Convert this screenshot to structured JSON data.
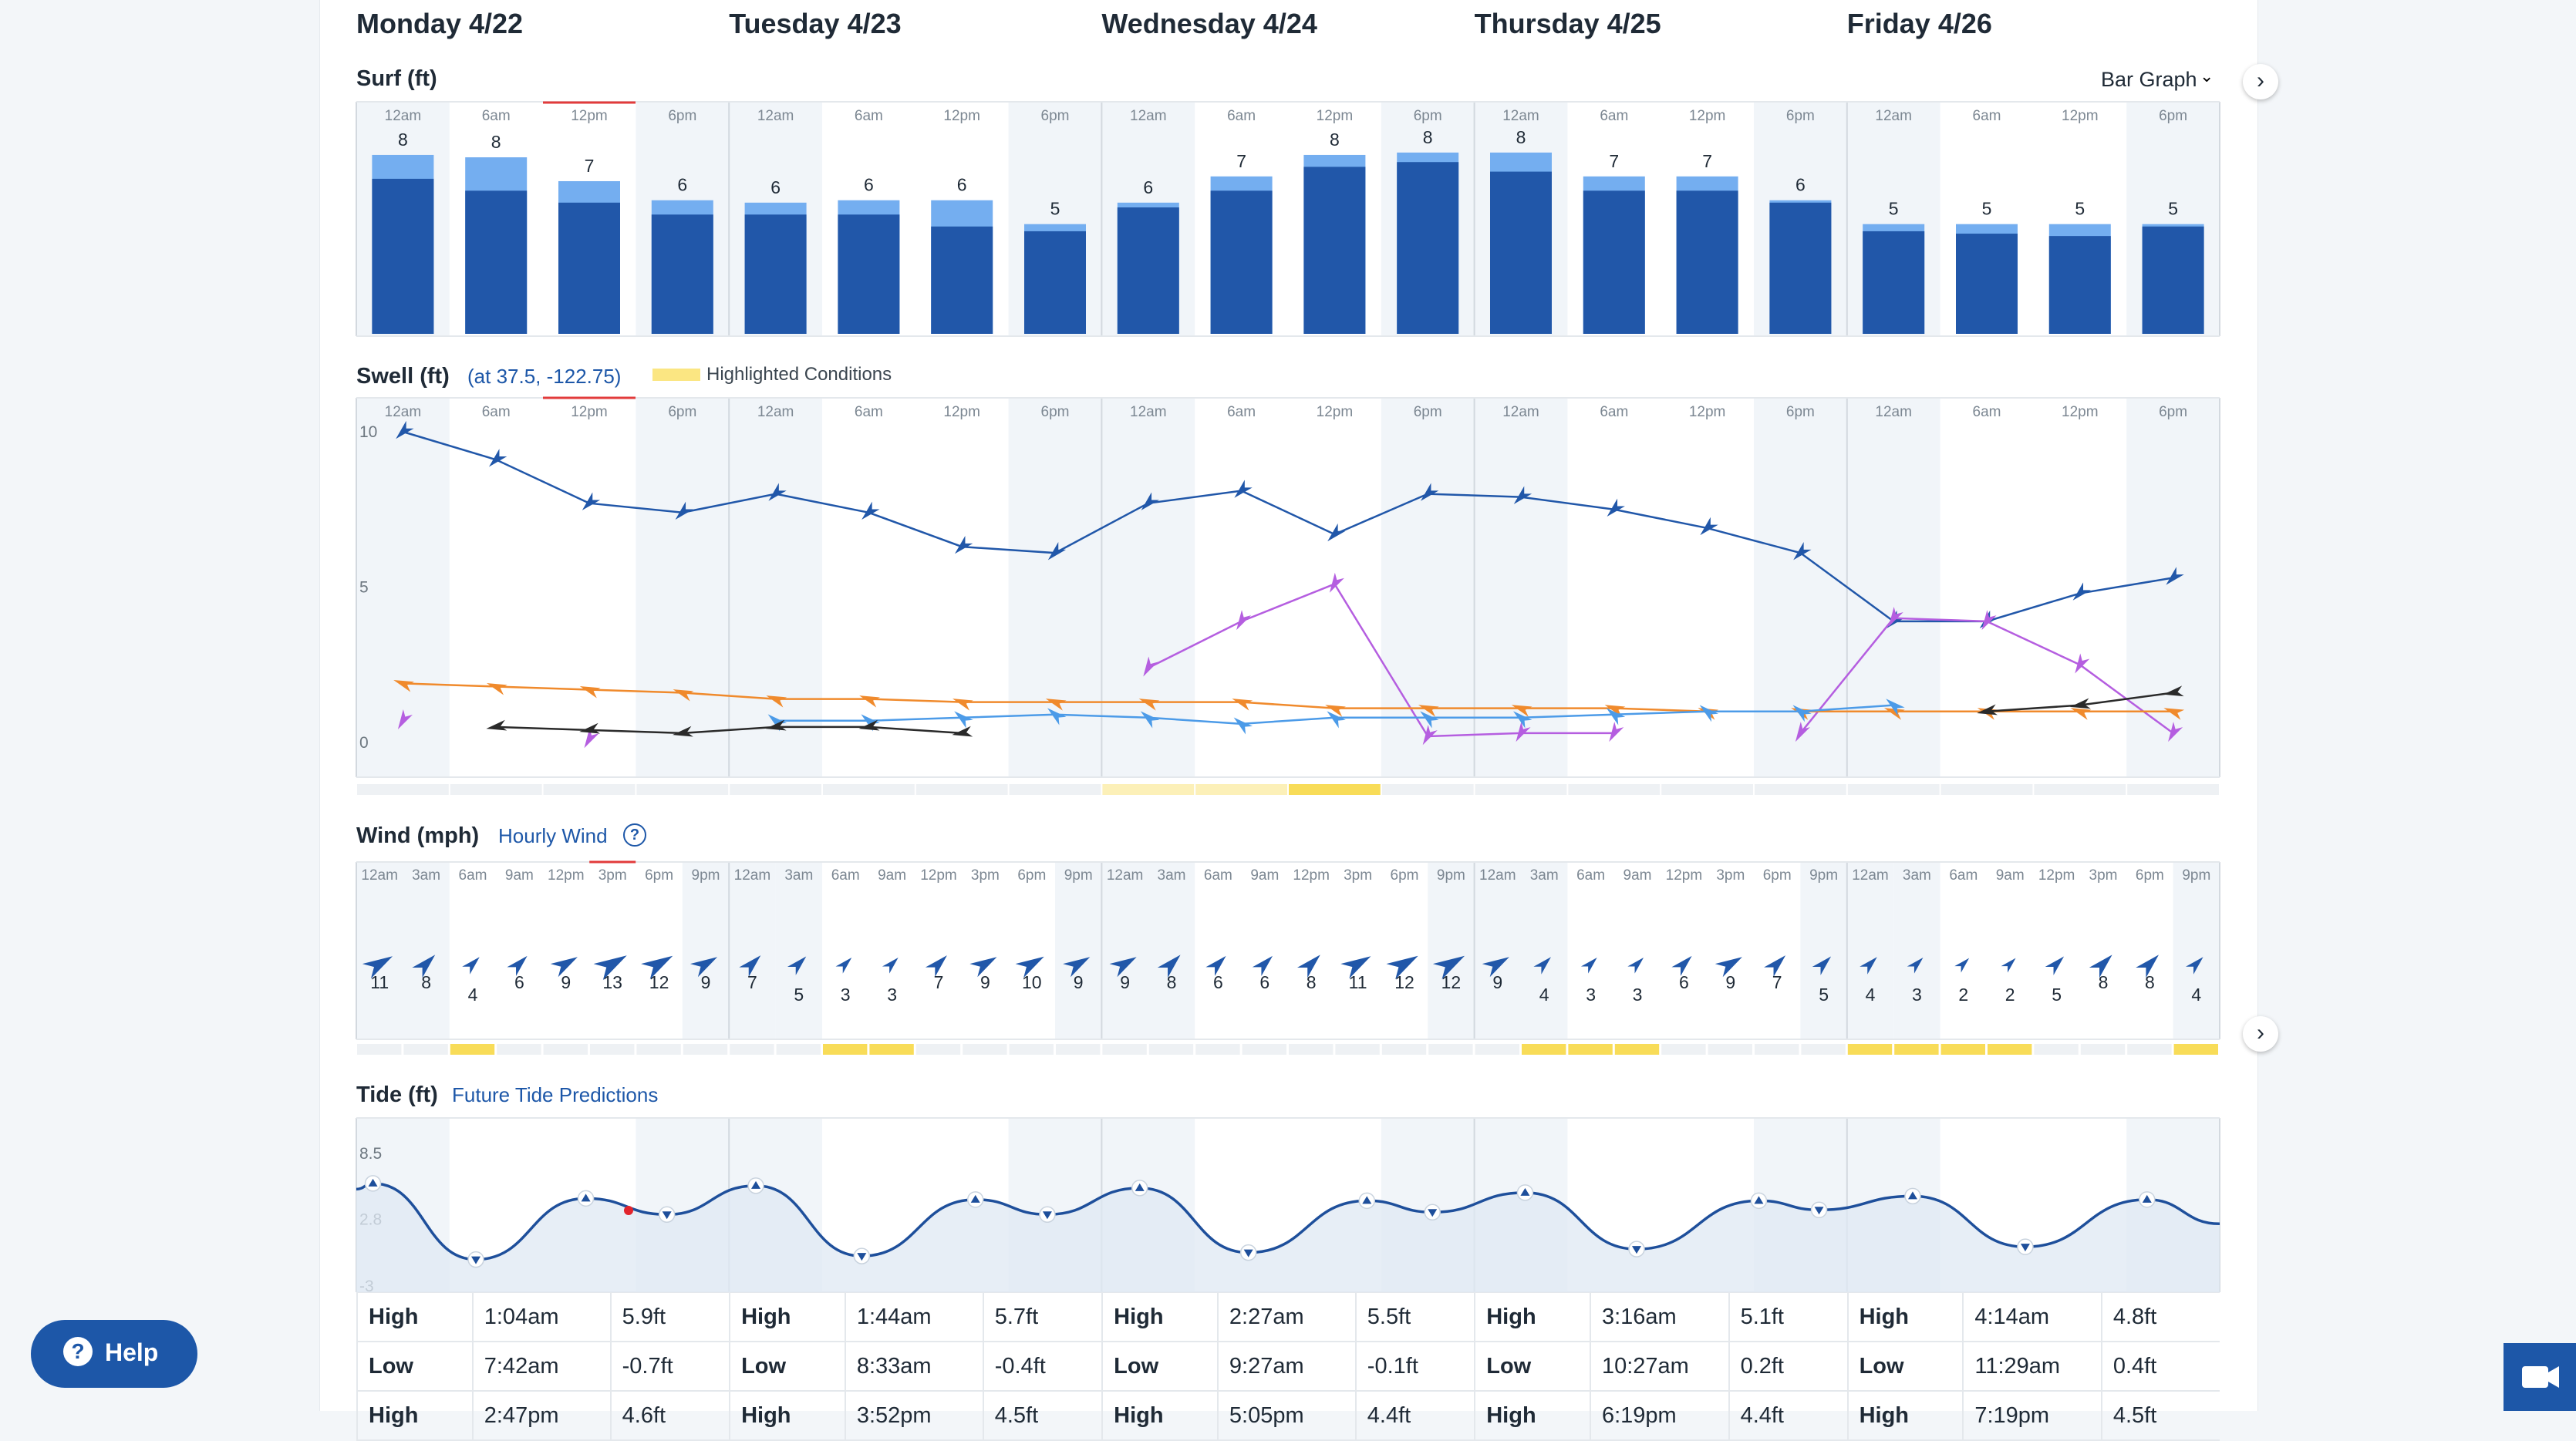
{
  "days": [
    "Monday 4/22",
    "Tuesday 4/23",
    "Wednesday 4/24",
    "Thursday 4/25",
    "Friday 4/26"
  ],
  "six_hour_ticks": [
    "12am",
    "6am",
    "12pm",
    "6pm"
  ],
  "three_hour_ticks": [
    "12am",
    "3am",
    "6am",
    "9am",
    "12pm",
    "3pm",
    "6pm",
    "9pm"
  ],
  "surf": {
    "title": "Surf (ft)",
    "view_label": "Bar Graph",
    "chevron_icon": "chevron-down-icon"
  },
  "swell": {
    "title": "Swell (ft)",
    "location": "(at 37.5, -122.75)",
    "legend_label": "Highlighted Conditions"
  },
  "wind": {
    "title": "Wind (mph)",
    "link": "Hourly Wind",
    "help": "?"
  },
  "tide": {
    "title": "Tide (ft)",
    "link": "Future Tide Predictions",
    "rows": [
      [
        [
          "High",
          "1:04am",
          "5.9ft"
        ],
        [
          "High",
          "1:44am",
          "5.7ft"
        ],
        [
          "High",
          "2:27am",
          "5.5ft"
        ],
        [
          "High",
          "3:16am",
          "5.1ft"
        ],
        [
          "High",
          "4:14am",
          "4.8ft"
        ]
      ],
      [
        [
          "Low",
          "7:42am",
          "-0.7ft"
        ],
        [
          "Low",
          "8:33am",
          "-0.4ft"
        ],
        [
          "Low",
          "9:27am",
          "-0.1ft"
        ],
        [
          "Low",
          "10:27am",
          "0.2ft"
        ],
        [
          "Low",
          "11:29am",
          "0.4ft"
        ]
      ],
      [
        [
          "High",
          "2:47pm",
          "4.6ft"
        ],
        [
          "High",
          "3:52pm",
          "4.5ft"
        ],
        [
          "High",
          "5:05pm",
          "4.4ft"
        ],
        [
          "High",
          "6:19pm",
          "4.4ft"
        ],
        [
          "High",
          "7:19pm",
          "4.5ft"
        ]
      ]
    ]
  },
  "help_label": "Help",
  "colors": {
    "surf_dark": "#2157a9",
    "surf_light": "#74aef0",
    "highlight": "#fbe682",
    "night_shade": "#f1f5f9",
    "swell_primary": "#2157a9",
    "swell_secondary_purple": "#b55ee0",
    "swell_orange": "#f08a2c",
    "swell_light_blue": "#4c9be8",
    "swell_black": "#2a2a2a",
    "tide_line": "#1e4f9b"
  },
  "chart_data": [
    {
      "id": "surf",
      "type": "bar",
      "title": "Surf (ft)",
      "categories": [
        "4/22 12am",
        "4/22 6am",
        "4/22 12pm",
        "4/22 6pm",
        "4/23 12am",
        "4/23 6am",
        "4/23 12pm",
        "4/23 6pm",
        "4/24 12am",
        "4/24 6am",
        "4/24 12pm",
        "4/24 6pm",
        "4/25 12am",
        "4/25 6am",
        "4/25 12pm",
        "4/25 6pm",
        "4/26 12am",
        "4/26 6am",
        "4/26 12pm",
        "4/26 6pm"
      ],
      "series": [
        {
          "name": "min",
          "values": [
            6.5,
            6.0,
            5.5,
            5.0,
            5.0,
            5.0,
            4.5,
            4.3,
            5.3,
            6.0,
            7.0,
            7.2,
            6.8,
            6.0,
            6.0,
            5.5,
            4.3,
            4.2,
            4.1,
            4.5
          ]
        },
        {
          "name": "max",
          "values": [
            7.5,
            7.4,
            6.4,
            5.6,
            5.5,
            5.6,
            5.6,
            4.6,
            5.5,
            6.6,
            7.5,
            7.6,
            7.6,
            6.6,
            6.6,
            5.6,
            4.6,
            4.6,
            4.6,
            4.6
          ]
        }
      ],
      "labels": [
        "8",
        "8",
        "7",
        "6",
        "6",
        "6",
        "6",
        "5",
        "6",
        "7",
        "8",
        "8",
        "8",
        "7",
        "7",
        "6",
        "5",
        "5",
        "5",
        "5"
      ],
      "ylim": [
        0,
        10
      ]
    },
    {
      "id": "swell",
      "type": "line",
      "title": "Swell (ft)",
      "x": [
        "4/22 12am",
        "4/22 6am",
        "4/22 12pm",
        "4/22 6pm",
        "4/23 12am",
        "4/23 6am",
        "4/23 12pm",
        "4/23 6pm",
        "4/24 12am",
        "4/24 6am",
        "4/24 12pm",
        "4/24 6pm",
        "4/25 12am",
        "4/25 6am",
        "4/25 12pm",
        "4/25 6pm",
        "4/26 12am",
        "4/26 6am",
        "4/26 12pm",
        "4/26 6pm"
      ],
      "yticks": [
        "10",
        "5",
        "0"
      ],
      "ylim": [
        0,
        10
      ],
      "series": [
        {
          "color_key": "swell_primary",
          "values": [
            10.0,
            9.1,
            7.7,
            7.4,
            8.0,
            7.4,
            6.3,
            6.1,
            7.7,
            8.1,
            6.7,
            8.0,
            7.9,
            7.5,
            6.9,
            6.1,
            3.9,
            3.9,
            4.8,
            5.3
          ]
        },
        {
          "color_key": "swell_secondary_purple",
          "values": [
            0.7,
            null,
            0.1,
            null,
            null,
            null,
            null,
            null,
            2.4,
            3.9,
            5.1,
            0.2,
            0.3,
            0.3,
            null,
            0.3,
            4.0,
            3.9,
            2.5,
            0.3
          ]
        },
        {
          "color_key": "swell_orange",
          "values": [
            1.9,
            1.8,
            1.7,
            1.6,
            1.4,
            1.4,
            1.3,
            1.3,
            1.3,
            1.3,
            1.1,
            1.1,
            1.1,
            1.1,
            1.0,
            1.0,
            1.0,
            1.0,
            1.0,
            1.0
          ]
        },
        {
          "color_key": "swell_light_blue",
          "values": [
            null,
            null,
            null,
            null,
            0.7,
            0.7,
            0.8,
            0.9,
            0.8,
            0.6,
            0.8,
            0.8,
            0.8,
            0.9,
            1.0,
            1.0,
            1.2,
            null,
            null,
            null
          ]
        },
        {
          "color_key": "swell_black",
          "values": [
            null,
            0.5,
            0.4,
            0.3,
            0.5,
            0.5,
            0.3,
            null,
            null,
            null,
            null,
            null,
            null,
            null,
            null,
            null,
            null,
            1.0,
            1.2,
            1.6
          ]
        }
      ],
      "highlight_cells": [
        8,
        9,
        10
      ]
    },
    {
      "id": "wind",
      "type": "scatter",
      "title": "Wind (mph)",
      "values": [
        11,
        8,
        4,
        6,
        9,
        13,
        12,
        9,
        7,
        5,
        3,
        3,
        7,
        9,
        10,
        9,
        9,
        8,
        6,
        6,
        8,
        11,
        12,
        12,
        9,
        4,
        3,
        3,
        6,
        9,
        7,
        5,
        4,
        3,
        2,
        2,
        5,
        8,
        8,
        4
      ],
      "highlight_cells": [
        2,
        10,
        11,
        25,
        26,
        27,
        32,
        33,
        34,
        35,
        39
      ]
    },
    {
      "id": "tide",
      "type": "line",
      "title": "Tide (ft)",
      "yticks": [
        "8.5",
        "2.8",
        "-3"
      ],
      "ylim": [
        -3,
        8.5
      ],
      "extremes": [
        {
          "day": 0,
          "hour": 1.07,
          "value": 5.9
        },
        {
          "day": 0,
          "hour": 7.7,
          "value": -0.7
        },
        {
          "day": 0,
          "hour": 14.78,
          "value": 4.6
        },
        {
          "day": 0,
          "hour": 20.0,
          "value": 3.2
        },
        {
          "day": 1,
          "hour": 1.73,
          "value": 5.7
        },
        {
          "day": 1,
          "hour": 8.55,
          "value": -0.4
        },
        {
          "day": 1,
          "hour": 15.87,
          "value": 4.5
        },
        {
          "day": 1,
          "hour": 20.5,
          "value": 3.2
        },
        {
          "day": 2,
          "hour": 2.45,
          "value": 5.5
        },
        {
          "day": 2,
          "hour": 9.45,
          "value": -0.1
        },
        {
          "day": 2,
          "hour": 17.08,
          "value": 4.4
        },
        {
          "day": 2,
          "hour": 21.3,
          "value": 3.4
        },
        {
          "day": 3,
          "hour": 3.27,
          "value": 5.1
        },
        {
          "day": 3,
          "hour": 10.45,
          "value": 0.2
        },
        {
          "day": 3,
          "hour": 18.32,
          "value": 4.4
        },
        {
          "day": 3,
          "hour": 22.2,
          "value": 3.6
        },
        {
          "day": 4,
          "hour": 4.23,
          "value": 4.8
        },
        {
          "day": 4,
          "hour": 11.48,
          "value": 0.4
        },
        {
          "day": 4,
          "hour": 19.32,
          "value": 4.5
        }
      ]
    }
  ]
}
